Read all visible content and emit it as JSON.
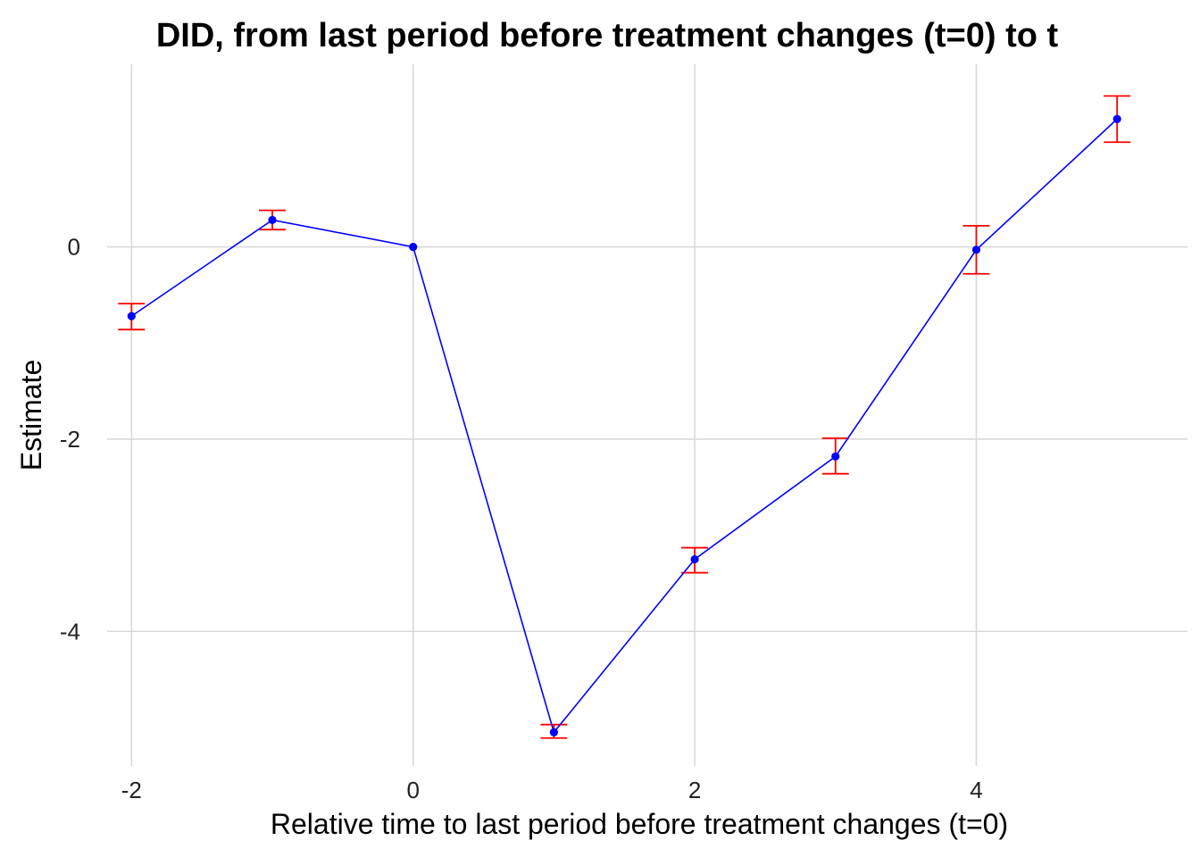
{
  "chart_data": {
    "type": "line",
    "title": "DID, from last period before treatment changes (t=0) to t",
    "xlabel": "Relative time to last period before treatment changes (t=0)",
    "ylabel": "Estimate",
    "xlim": [
      -2.3,
      5.5
    ],
    "ylim": [
      -5.4,
      1.9
    ],
    "xticks": [
      -2,
      0,
      2,
      4
    ],
    "yticks": [
      -4,
      -2,
      0
    ],
    "grid": true,
    "legend": "none",
    "series": [
      {
        "x": [
          -2,
          -1,
          0,
          1,
          2,
          3,
          4,
          5
        ],
        "y": [
          -0.72,
          0.28,
          0.0,
          -5.05,
          -3.25,
          -2.18,
          -0.03,
          1.33
        ],
        "ci_lower": [
          -0.86,
          0.18,
          0.0,
          -5.11,
          -3.39,
          -2.36,
          -0.28,
          1.09
        ],
        "ci_upper": [
          -0.59,
          0.38,
          0.0,
          -4.97,
          -3.13,
          -1.99,
          0.22,
          1.57
        ]
      }
    ],
    "colors": {
      "line": "#0000ff",
      "points": "#0000ff",
      "error_bars": "#ff0000",
      "grid": "#d9d9d9"
    }
  }
}
